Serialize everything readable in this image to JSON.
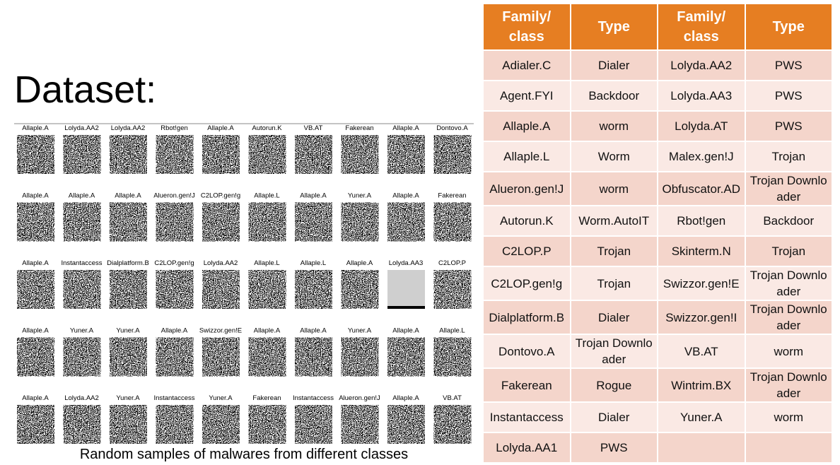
{
  "title": "Dataset:",
  "samples": [
    [
      "Allaple.A",
      "Lolyda.AA2",
      "Lolyda.AA2",
      "Rbot!gen",
      "Allaple.A",
      "Autorun.K",
      "VB.AT",
      "Fakerean",
      "Allaple.A",
      "Dontovo.A"
    ],
    [
      "Allaple.A",
      "Allaple.A",
      "Allaple.A",
      "Alueron.gen!J",
      "C2LOP.gen!g",
      "Allaple.L",
      "Allaple.A",
      "Yuner.A",
      "Allaple.A",
      "Fakerean"
    ],
    [
      "Allaple.A",
      "Instantaccess",
      "Dialplatform.B",
      "C2LOP.gen!g",
      "Lolyda.AA2",
      "Allaple.L",
      "Allaple.L",
      "Allaple.A",
      "Lolyda.AA3",
      "C2LOP.P"
    ],
    [
      "Allaple.A",
      "Yuner.A",
      "Yuner.A",
      "Allaple.A",
      "Swizzor.gen!E",
      "Allaple.A",
      "Allaple.A",
      "Yuner.A",
      "Allaple.A",
      "Allaple.L"
    ],
    [
      "Allaple.A",
      "Lolyda.AA2",
      "Yuner.A",
      "Instantaccess",
      "Yuner.A",
      "Fakerean",
      "Instantaccess",
      "Alueron.gen!J",
      "Allaple.A",
      "VB.AT"
    ]
  ],
  "caption": "Random samples of malwares from different classes",
  "table": {
    "header": [
      "Family/ class",
      "Type",
      "Family/ class",
      "Type"
    ],
    "rows": [
      [
        "Adialer.C",
        "Dialer",
        "Lolyda.AA2",
        "PWS"
      ],
      [
        "Agent.FYI",
        "Backdoor",
        "Lolyda.AA3",
        "PWS"
      ],
      [
        "Allaple.A",
        "worm",
        "Lolyda.AT",
        "PWS"
      ],
      [
        "Allaple.L",
        "Worm",
        "Malex.gen!J",
        "Trojan"
      ],
      [
        "Alueron.gen!J",
        "worm",
        "Obfuscator.AD",
        "Trojan Downloader"
      ],
      [
        "Autorun.K",
        "Worm.AutoIT",
        "Rbot!gen",
        "Backdoor"
      ],
      [
        "C2LOP.P",
        "Trojan",
        "Skinterm.N",
        "Trojan"
      ],
      [
        "C2LOP.gen!g",
        "Trojan",
        "Swizzor.gen!E",
        "Trojan Downloader"
      ],
      [
        "Dialplatform.B",
        "Dialer",
        "Swizzor.gen!I",
        "Trojan Downloader"
      ],
      [
        "Dontovo.A",
        "Trojan Downloader",
        "VB.AT",
        "worm"
      ],
      [
        "Fakerean",
        "Rogue",
        "Wintrim.BX",
        "Trojan Downloader"
      ],
      [
        "Instantaccess",
        "Dialer",
        "Yuner.A",
        "worm"
      ],
      [
        "Lolyda.AA1",
        "PWS"
      ]
    ]
  }
}
